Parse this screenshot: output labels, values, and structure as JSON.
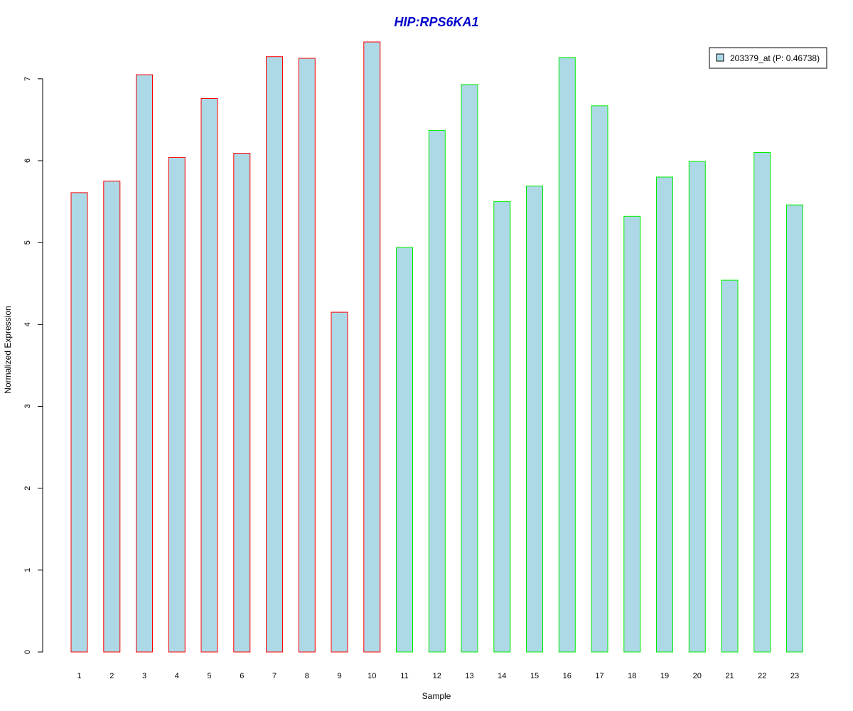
{
  "chart_data": {
    "type": "bar",
    "title": "HIP:RPS6KA1",
    "xlabel": "Sample",
    "ylabel": "Normalized Expression",
    "categories": [
      "1",
      "2",
      "3",
      "4",
      "5",
      "6",
      "7",
      "8",
      "9",
      "10",
      "11",
      "12",
      "13",
      "14",
      "15",
      "16",
      "17",
      "18",
      "19",
      "20",
      "21",
      "22",
      "23"
    ],
    "series": [
      {
        "name": "203379_at (P: 0.46738)",
        "values": [
          5.61,
          5.75,
          7.05,
          6.04,
          6.76,
          6.09,
          7.27,
          7.25,
          4.15,
          7.45,
          4.94,
          6.37,
          6.93,
          5.5,
          5.69,
          7.26,
          6.67,
          5.32,
          5.8,
          5.99,
          4.54,
          6.1,
          5.46
        ]
      }
    ],
    "group_outline_colors": [
      "#ff0000",
      "#ff0000",
      "#ff0000",
      "#ff0000",
      "#ff0000",
      "#ff0000",
      "#ff0000",
      "#ff0000",
      "#ff0000",
      "#ff0000",
      "#00ee00",
      "#00ee00",
      "#00ee00",
      "#00ee00",
      "#00ee00",
      "#00ee00",
      "#00ee00",
      "#00ee00",
      "#00ee00",
      "#00ee00",
      "#00ee00",
      "#00ee00",
      "#00ee00"
    ],
    "yticks": [
      0,
      1,
      2,
      3,
      4,
      5,
      6,
      7
    ],
    "ylim": [
      0,
      7.45
    ],
    "grid": false,
    "legend_position": "top-right",
    "colors": {
      "bar_fill": "#add8e6",
      "title": "#0000cd",
      "axis": "#000000"
    }
  }
}
